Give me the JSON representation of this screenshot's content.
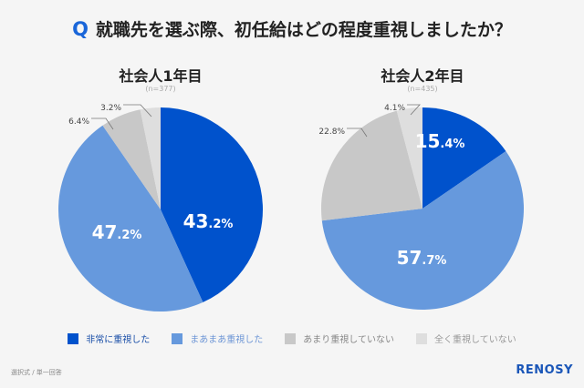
{
  "question_mark": "Q",
  "title": "就職先を選ぶ際、初任給はどの程度重視しましたか？",
  "colors": [
    "#0052cc",
    "#6699dd",
    "#c8c8c8",
    "#dedede"
  ],
  "legend": [
    "非常に重視した",
    "まあまあ重視した",
    "あまり重視していない",
    "全く重視していない"
  ],
  "legend_text_colors": [
    "#1a4fa8",
    "#6f97d6",
    "#888888",
    "#999999"
  ],
  "chart_data": [
    {
      "type": "pie",
      "title": "社会人1年目",
      "subtitle": "(n=377)",
      "categories": [
        "非常に重視した",
        "まあまあ重視した",
        "あまり重視していない",
        "全く重視していない"
      ],
      "values": [
        43.2,
        47.2,
        6.4,
        3.2
      ],
      "labels": [
        "43.2%",
        "47.2%",
        "6.4%",
        "3.2%"
      ]
    },
    {
      "type": "pie",
      "title": "社会人2年目",
      "subtitle": "(n=435)",
      "categories": [
        "非常に重視した",
        "まあまあ重視した",
        "あまり重視していない",
        "全く重視していない"
      ],
      "values": [
        15.4,
        57.7,
        22.8,
        4.1
      ],
      "labels": [
        "15.4%",
        "57.7%",
        "22.8%",
        "4.1%"
      ]
    }
  ],
  "footer": "選択式 / 単一回答",
  "logo": "RENOSY"
}
